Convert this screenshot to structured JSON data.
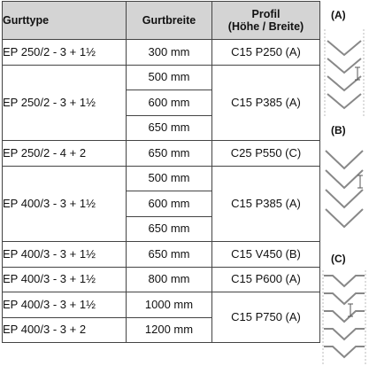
{
  "table": {
    "headers": {
      "type": "Gurttype",
      "width": "Gurtbreite",
      "profile_line1": "Profil",
      "profile_line2": "(Höhe / Breite)"
    },
    "rows": [
      {
        "type": "EP 250/2 - 3 + 1½",
        "widths": [
          "300 mm"
        ],
        "profile": "C15 P250 (A)"
      },
      {
        "type": "EP 250/2 - 3 + 1½",
        "widths": [
          "500 mm",
          "600 mm",
          "650 mm"
        ],
        "profile": "C15 P385 (A)"
      },
      {
        "type": "EP 250/2 - 4 + 2",
        "widths": [
          "650 mm"
        ],
        "profile": "C25 P550 (C)"
      },
      {
        "type": "EP 400/3 - 3 + 1½",
        "widths": [
          "500 mm",
          "600 mm",
          "650 mm"
        ],
        "profile": "C15 P385 (A)"
      },
      {
        "type": "EP 400/3 - 3 + 1½",
        "widths": [
          "650 mm"
        ],
        "profile": "C15 V450 (B)"
      },
      {
        "type": "EP 400/3 - 3 + 1½",
        "widths": [
          "800 mm"
        ],
        "profile": "C15 P600 (A)"
      },
      {
        "type": "EP 400/3 - 3 + 1½",
        "widths": [
          "1000 mm"
        ],
        "profile": "C15 P750 (A)"
      },
      {
        "type": "EP 400/3 - 3 + 2",
        "widths": [
          "1200 mm"
        ],
        "profile": "C15 P750 (A)"
      }
    ]
  },
  "diagrams": {
    "a_label": "(A)",
    "b_label": "(B)",
    "c_label": "(C)"
  }
}
